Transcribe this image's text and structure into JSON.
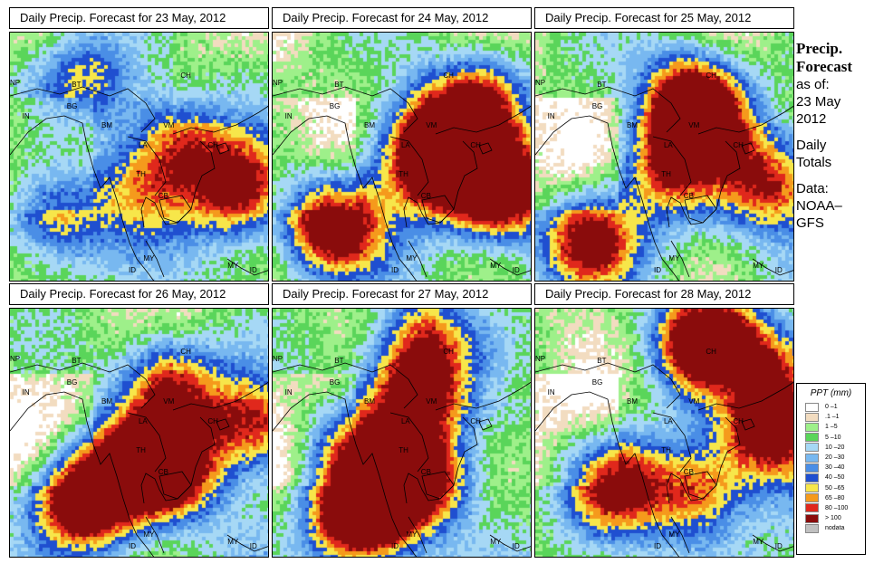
{
  "panels": [
    {
      "title": "Daily Precip. Forecast for  23 May, 2012",
      "seed": 23,
      "hot": [
        [
          0.87,
          0.62,
          1.0
        ],
        [
          0.3,
          0.18,
          0.6
        ],
        [
          0.64,
          0.42,
          0.7
        ],
        [
          0.16,
          0.72,
          0.7
        ],
        [
          0.5,
          0.62,
          0.5
        ]
      ]
    },
    {
      "title": "Daily Precip. Forecast for  24 May, 2012",
      "seed": 24,
      "hot": [
        [
          0.87,
          0.62,
          1.3
        ],
        [
          0.22,
          0.76,
          1.2
        ],
        [
          0.6,
          0.43,
          1.0
        ],
        [
          0.78,
          0.27,
          0.9
        ],
        [
          0.62,
          0.56,
          0.7
        ]
      ]
    },
    {
      "title": "Daily Precip. Forecast for  25 May, 2012",
      "seed": 25,
      "hot": [
        [
          0.62,
          0.34,
          1.2
        ],
        [
          0.2,
          0.82,
          1.0
        ],
        [
          0.5,
          0.55,
          0.7
        ],
        [
          0.9,
          0.6,
          0.8
        ],
        [
          0.6,
          0.22,
          0.6
        ]
      ]
    },
    {
      "title": "Daily Precip. Forecast for  26 May, 2012",
      "seed": 26,
      "hot": [
        [
          0.28,
          0.75,
          1.4
        ],
        [
          0.6,
          0.64,
          1.1
        ],
        [
          0.62,
          0.3,
          0.9
        ],
        [
          0.93,
          0.45,
          0.9
        ],
        [
          0.45,
          0.6,
          0.6
        ]
      ]
    },
    {
      "title": "Daily Precip. Forecast for  27 May, 2012",
      "seed": 27,
      "hot": [
        [
          0.33,
          0.82,
          1.4
        ],
        [
          0.55,
          0.67,
          1.2
        ],
        [
          0.55,
          0.33,
          1.1
        ],
        [
          0.58,
          0.1,
          0.7
        ],
        [
          0.3,
          0.55,
          0.7
        ]
      ]
    },
    {
      "title": "Daily Precip. Forecast for  28 May, 2012",
      "seed": 28,
      "hot": [
        [
          0.66,
          0.12,
          1.5
        ],
        [
          0.9,
          0.5,
          1.0
        ],
        [
          0.3,
          0.7,
          0.9
        ],
        [
          0.62,
          0.73,
          0.8
        ],
        [
          0.95,
          0.25,
          0.7
        ]
      ]
    }
  ],
  "map_labels": [
    "NP",
    "BT",
    "BG",
    "IN",
    "BM",
    "CH",
    "VM",
    "CH",
    "LA",
    "TH",
    "CB",
    "MY",
    "MY",
    "ID",
    "ID"
  ],
  "sidebar": {
    "title_line1": "Precip.",
    "title_line2": "Forecast",
    "asof_line1": "as of:",
    "asof_line2": "23 May",
    "asof_line3": "2012",
    "totals_line1": "Daily",
    "totals_line2": "Totals",
    "data_line1": "Data:",
    "data_line2": "NOAA–",
    "data_line3": "GFS"
  },
  "legend": {
    "title": "PPT (mm)",
    "items": [
      {
        "label": "0 –1",
        "color": "#ffffff"
      },
      {
        "label": ".1 –1",
        "color": "#f2dcc0"
      },
      {
        "label": "1 –5",
        "color": "#9ef08a"
      },
      {
        "label": "5 –10",
        "color": "#5ad55a"
      },
      {
        "label": "10 –20",
        "color": "#a6d8f5"
      },
      {
        "label": "20 –30",
        "color": "#78b8f0"
      },
      {
        "label": "30 –40",
        "color": "#4a8ee6"
      },
      {
        "label": "40 –50",
        "color": "#1f4fd0"
      },
      {
        "label": "50 –65",
        "color": "#f7e64a"
      },
      {
        "label": "65 –80",
        "color": "#f59a1c"
      },
      {
        "label": "80 –100",
        "color": "#e0281c"
      },
      {
        "label": "> 100",
        "color": "#8a0c0c"
      },
      {
        "label": "nodata",
        "color": "#c0c0c0"
      }
    ]
  }
}
